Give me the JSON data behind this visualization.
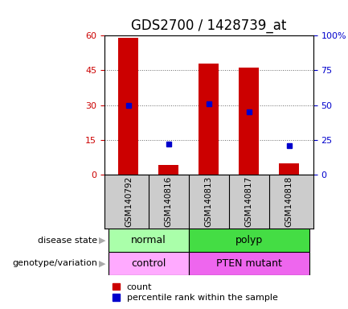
{
  "title": "GDS2700 / 1428739_at",
  "samples": [
    "GSM140792",
    "GSM140816",
    "GSM140813",
    "GSM140817",
    "GSM140818"
  ],
  "count_values": [
    59,
    4,
    48,
    46,
    5
  ],
  "percentile_values": [
    50,
    22,
    51,
    45,
    21
  ],
  "ylim_left": [
    0,
    60
  ],
  "ylim_right": [
    0,
    100
  ],
  "yticks_left": [
    0,
    15,
    30,
    45,
    60
  ],
  "ytick_labels_left": [
    "0",
    "15",
    "30",
    "45",
    "60"
  ],
  "yticks_right": [
    0,
    25,
    50,
    75,
    100
  ],
  "ytick_labels_right": [
    "0",
    "25",
    "50",
    "75",
    "100%"
  ],
  "bar_color": "#cc0000",
  "percentile_color": "#0000cc",
  "bar_width": 0.5,
  "disease_state": [
    {
      "label": "normal",
      "cols": [
        0,
        1
      ],
      "color": "#aaffaa"
    },
    {
      "label": "polyp",
      "cols": [
        2,
        3,
        4
      ],
      "color": "#44dd44"
    }
  ],
  "genotype": [
    {
      "label": "control",
      "cols": [
        0,
        1
      ],
      "color": "#ffaaff"
    },
    {
      "label": "PTEN mutant",
      "cols": [
        2,
        3,
        4
      ],
      "color": "#ee66ee"
    }
  ],
  "left_label_disease": "disease state",
  "left_label_genotype": "genotype/variation",
  "legend_count_label": "count",
  "legend_pct_label": "percentile rank within the sample",
  "bg_color": "#ffffff",
  "grid_color": "#666666",
  "tick_label_color_left": "#cc0000",
  "tick_label_color_right": "#0000cc",
  "title_fontsize": 12,
  "axis_tick_fontsize": 8,
  "sample_label_fontsize": 7.5,
  "label_gray": "#aaaaaa"
}
